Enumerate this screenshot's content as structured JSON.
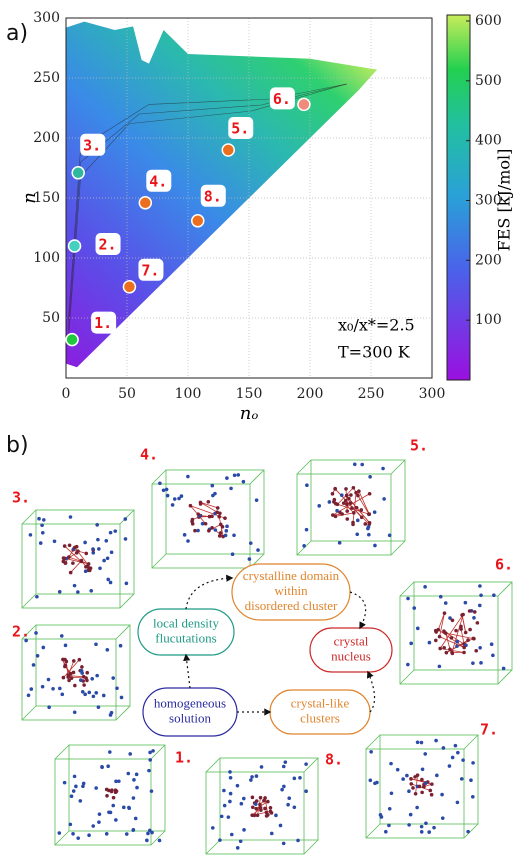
{
  "panel_a_label": "a)",
  "panel_b_label": "b)",
  "chart_data": {
    "type": "scatter",
    "xlabel": "nₒ",
    "ylabel": "n",
    "xlim": [
      0,
      300
    ],
    "ylim": [
      0,
      300
    ],
    "xticks": [
      0,
      50,
      100,
      150,
      200,
      250,
      300
    ],
    "yticks": [
      50,
      100,
      150,
      200,
      250,
      300
    ],
    "grid": true,
    "colorbar": {
      "label": "FES [kJ/mol]",
      "lim": [
        0,
        610
      ],
      "ticks": [
        100,
        200,
        300,
        400,
        500,
        600
      ]
    },
    "annotations": [
      "x₀/x*=2.5",
      "T=300 K"
    ],
    "points": [
      {
        "label": "1.",
        "x": 5,
        "y": 32,
        "color": "#1fc83c"
      },
      {
        "label": "2.",
        "x": 7,
        "y": 110,
        "color": "#46d0c0"
      },
      {
        "label": "3.",
        "x": 10,
        "y": 171,
        "color": "#2fb8a0"
      },
      {
        "label": "4.",
        "x": 65,
        "y": 146,
        "color": "#ec6f1e"
      },
      {
        "label": "5.",
        "x": 133,
        "y": 190,
        "color": "#ec6f1e"
      },
      {
        "label": "6.",
        "x": 195,
        "y": 228,
        "color": "#f08a7a"
      },
      {
        "label": "7.",
        "x": 52,
        "y": 76,
        "color": "#ec6f1e"
      },
      {
        "label": "8.",
        "x": 108,
        "y": 131,
        "color": "#ec6f1e"
      }
    ]
  },
  "diagram": {
    "nodes": [
      {
        "lines": [
          "homogeneous",
          "solution"
        ],
        "color": "#2a2aa0"
      },
      {
        "lines": [
          "local density",
          "flucutations"
        ],
        "color": "#1f9a86"
      },
      {
        "lines": [
          "crystalline domain",
          "within",
          "disordered cluster"
        ],
        "color": "#e0852e"
      },
      {
        "lines": [
          "crystal",
          "nucleus"
        ],
        "color": "#cc2a2a"
      },
      {
        "lines": [
          "crystal-like",
          "clusters"
        ],
        "color": "#e0852e"
      }
    ],
    "snapshots": [
      "1.",
      "2.",
      "3.",
      "4.",
      "5.",
      "6.",
      "7.",
      "8."
    ]
  }
}
